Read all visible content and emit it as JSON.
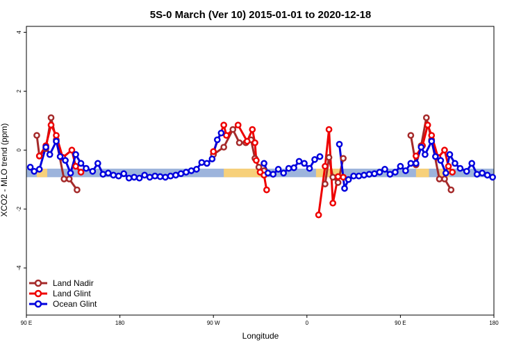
{
  "chart_data": {
    "type": "line",
    "title": "5S-0 March (Ver 10)   2015-01-01 to 2020-12-18",
    "xlabel": "Longitude",
    "ylabel": "XCO2 - MLO trend (ppm)",
    "xlim": [
      0,
      360
    ],
    "ylim": [
      -5.6,
      4.2
    ],
    "x_ticks": [
      {
        "value": 0,
        "label": "90 E"
      },
      {
        "value": 72,
        "label": "180"
      },
      {
        "value": 144,
        "label": "90 W"
      },
      {
        "value": 216,
        "label": "0"
      },
      {
        "value": 288,
        "label": "90 E"
      },
      {
        "value": 360,
        "label": "180"
      }
    ],
    "y_ticks": [
      -4,
      -2,
      0,
      2,
      4
    ],
    "legend_position": "bottom-left",
    "band": {
      "y_low": -0.92,
      "y_high": -0.63,
      "colors": {
        "ocean": "#9db4dc",
        "land": "#f7d07a"
      },
      "land_ranges": [
        [
          8,
          16
        ],
        [
          152,
          182
        ],
        [
          223,
          244
        ],
        [
          300,
          310
        ],
        [
          318,
          326
        ]
      ]
    },
    "series": [
      {
        "name": "Land Nadir",
        "color": "#a52a2a",
        "segments": [
          [
            [
              8,
              0.5
            ],
            [
              10,
              -0.2
            ],
            [
              15,
              0.05
            ],
            [
              19,
              1.1
            ],
            [
              23,
              0.35
            ],
            [
              29,
              -0.98
            ],
            [
              33,
              -0.98
            ],
            [
              39,
              -1.35
            ]
          ],
          [
            [
              144,
              -0.15
            ],
            [
              152,
              0.1
            ],
            [
              159,
              0.7
            ],
            [
              164,
              0.25
            ],
            [
              169,
              0.25
            ],
            [
              173,
              0.35
            ],
            [
              176,
              -0.28
            ],
            [
              179,
              -0.58
            ],
            [
              183,
              -0.7
            ]
          ],
          [
            [
              230,
              -1.15
            ],
            [
              233,
              -0.25
            ],
            [
              236,
              -0.92
            ],
            [
              240,
              -1.1
            ],
            [
              244,
              -0.28
            ]
          ],
          [
            [
              296,
              0.5
            ],
            [
              300,
              -0.5
            ],
            [
              304,
              0.15
            ],
            [
              308,
              1.1
            ],
            [
              312,
              0.35
            ],
            [
              318,
              -0.98
            ],
            [
              322,
              -0.98
            ],
            [
              327,
              -1.35
            ]
          ]
        ]
      },
      {
        "name": "Land Glint",
        "color": "#ee0000",
        "segments": [
          [
            [
              10,
              -0.2
            ],
            [
              15,
              0.15
            ],
            [
              19,
              0.85
            ],
            [
              23,
              0.5
            ],
            [
              28,
              -0.25
            ],
            [
              35,
              0.0
            ],
            [
              38,
              -0.55
            ],
            [
              42,
              -0.75
            ]
          ],
          [
            [
              144,
              -0.05
            ],
            [
              152,
              0.85
            ],
            [
              154,
              0.5
            ],
            [
              163,
              0.85
            ],
            [
              170,
              0.3
            ],
            [
              174,
              0.7
            ],
            [
              176,
              0.25
            ],
            [
              177,
              -0.35
            ],
            [
              180,
              -0.75
            ],
            [
              183,
              -0.85
            ],
            [
              185,
              -1.35
            ]
          ],
          [
            [
              225,
              -2.2
            ],
            [
              230,
              -0.55
            ],
            [
              233,
              0.7
            ],
            [
              236,
              -1.8
            ],
            [
              240,
              -0.9
            ],
            [
              244,
              -0.92
            ]
          ],
          [
            [
              300,
              -0.2
            ],
            [
              305,
              0.15
            ],
            [
              309,
              0.85
            ],
            [
              312,
              0.5
            ],
            [
              317,
              -0.25
            ],
            [
              322,
              0.0
            ],
            [
              325,
              -0.55
            ],
            [
              328,
              -0.75
            ]
          ]
        ]
      },
      {
        "name": "Ocean Glint",
        "color": "#0000dd",
        "segments": [
          [
            [
              3,
              -0.58
            ],
            [
              6,
              -0.72
            ],
            [
              10,
              -0.65
            ],
            [
              15,
              0.1
            ],
            [
              18,
              -0.15
            ],
            [
              23,
              0.3
            ],
            [
              26,
              -0.22
            ],
            [
              30,
              -0.35
            ],
            [
              34,
              -0.78
            ],
            [
              38,
              -0.15
            ],
            [
              42,
              -0.45
            ],
            [
              46,
              -0.62
            ],
            [
              51,
              -0.72
            ],
            [
              55,
              -0.45
            ],
            [
              59,
              -0.82
            ],
            [
              63,
              -0.78
            ],
            [
              67,
              -0.85
            ],
            [
              71,
              -0.88
            ],
            [
              75,
              -0.8
            ],
            [
              79,
              -0.95
            ],
            [
              83,
              -0.92
            ],
            [
              87,
              -0.95
            ],
            [
              91,
              -0.85
            ],
            [
              95,
              -0.92
            ],
            [
              99,
              -0.88
            ],
            [
              103,
              -0.9
            ],
            [
              107,
              -0.92
            ],
            [
              111,
              -0.88
            ],
            [
              115,
              -0.85
            ],
            [
              119,
              -0.8
            ],
            [
              123,
              -0.75
            ],
            [
              127,
              -0.7
            ],
            [
              131,
              -0.65
            ],
            [
              135,
              -0.42
            ],
            [
              139,
              -0.45
            ],
            [
              143,
              -0.3
            ],
            [
              147,
              0.35
            ],
            [
              150,
              0.58
            ]
          ],
          [
            [
              183,
              -0.45
            ],
            [
              186,
              -0.78
            ],
            [
              190,
              -0.82
            ],
            [
              194,
              -0.65
            ],
            [
              198,
              -0.78
            ],
            [
              202,
              -0.62
            ],
            [
              206,
              -0.6
            ],
            [
              210,
              -0.38
            ],
            [
              214,
              -0.45
            ],
            [
              218,
              -0.62
            ],
            [
              222,
              -0.32
            ],
            [
              226,
              -0.22
            ]
          ],
          [
            [
              241,
              0.2
            ],
            [
              245,
              -1.3
            ],
            [
              248,
              -1.0
            ],
            [
              252,
              -0.88
            ],
            [
              256,
              -0.88
            ],
            [
              260,
              -0.85
            ],
            [
              264,
              -0.82
            ],
            [
              268,
              -0.8
            ],
            [
              272,
              -0.75
            ],
            [
              276,
              -0.65
            ],
            [
              280,
              -0.82
            ],
            [
              284,
              -0.75
            ],
            [
              288,
              -0.55
            ],
            [
              292,
              -0.7
            ],
            [
              296,
              -0.45
            ],
            [
              300,
              -0.45
            ],
            [
              304,
              0.1
            ],
            [
              307,
              -0.15
            ],
            [
              312,
              0.3
            ],
            [
              315,
              -0.22
            ],
            [
              319,
              -0.35
            ],
            [
              323,
              -0.78
            ],
            [
              326,
              -0.15
            ],
            [
              330,
              -0.45
            ],
            [
              334,
              -0.62
            ],
            [
              339,
              -0.72
            ],
            [
              343,
              -0.45
            ],
            [
              347,
              -0.82
            ],
            [
              351,
              -0.78
            ],
            [
              355,
              -0.85
            ],
            [
              359,
              -0.92
            ]
          ]
        ]
      }
    ]
  }
}
